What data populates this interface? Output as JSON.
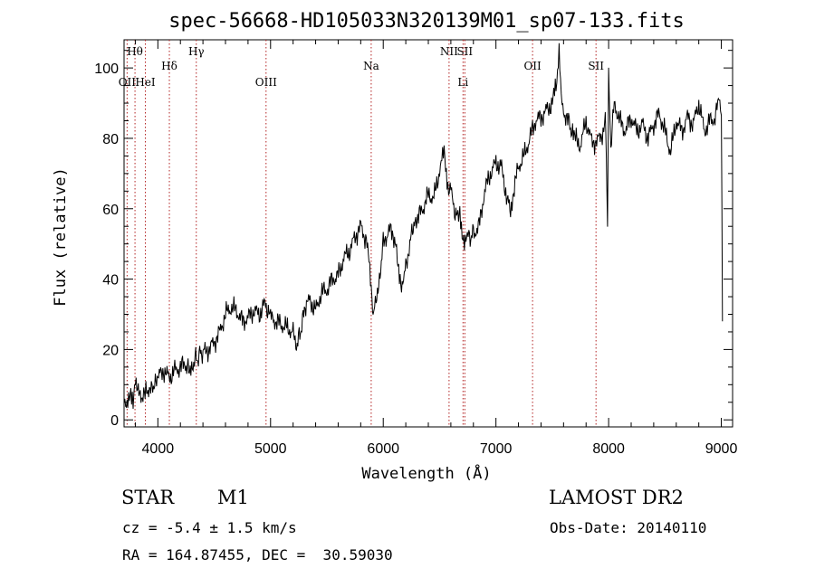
{
  "chart_data": {
    "type": "line",
    "title": "spec-56668-HD105033N320139M01_sp07-133.fits",
    "xlabel": "Wavelength (Å)",
    "ylabel": "Flux (relative)",
    "xlim": [
      3700,
      9100
    ],
    "ylim": [
      -2,
      108
    ],
    "xticks": [
      4000,
      5000,
      6000,
      7000,
      8000,
      9000
    ],
    "yticks": [
      0,
      20,
      40,
      60,
      80,
      100
    ],
    "grid": false,
    "line_color": "#000000",
    "marker_color": "#b22222",
    "series": [
      {
        "x": [
          3700,
          3720,
          3740,
          3760,
          3780,
          3800,
          3820,
          3850,
          3880,
          3900,
          3930,
          3960,
          4000,
          4050,
          4100,
          4150,
          4200,
          4250,
          4280,
          4300,
          4330,
          4360,
          4400,
          4450,
          4500,
          4550,
          4600,
          4650,
          4700,
          4750,
          4800,
          4850,
          4900,
          4950,
          4980,
          5000,
          5050,
          5100,
          5150,
          5200,
          5230,
          5260,
          5300,
          5350,
          5400,
          5450,
          5500,
          5550,
          5600,
          5650,
          5700,
          5750,
          5800,
          5850,
          5880,
          5900,
          5910,
          5930,
          5960,
          6000,
          6050,
          6100,
          6130,
          6150,
          6180,
          6200,
          6230,
          6260,
          6300,
          6350,
          6400,
          6450,
          6500,
          6520,
          6540,
          6560,
          6580,
          6600,
          6620,
          6650,
          6680,
          6700,
          6720,
          6740,
          6760,
          6800,
          6850,
          6900,
          6950,
          7000,
          7050,
          7080,
          7100,
          7130,
          7150,
          7200,
          7250,
          7300,
          7350,
          7400,
          7450,
          7500,
          7520,
          7540,
          7560,
          7580,
          7600,
          7650,
          7680,
          7700,
          7750,
          7800,
          7850,
          7900,
          7950,
          7970,
          7980,
          7990,
          8000,
          8020,
          8050,
          8100,
          8150,
          8200,
          8250,
          8300,
          8350,
          8400,
          8450,
          8500,
          8550,
          8600,
          8650,
          8700,
          8750,
          8800,
          8850,
          8900,
          8950,
          8980,
          9000,
          9010
        ],
        "y": [
          5,
          4,
          7,
          9,
          6,
          12,
          8,
          7,
          6,
          9,
          8,
          10,
          12,
          14,
          12,
          14,
          15,
          16,
          13,
          15,
          17,
          18,
          19,
          20,
          22,
          25,
          30,
          32,
          31,
          28,
          29,
          31,
          30,
          33,
          31,
          29,
          28,
          27,
          26,
          25,
          21,
          24,
          32,
          34,
          31,
          36,
          37,
          40,
          41,
          46,
          48,
          52,
          55,
          51,
          44,
          36,
          28,
          34,
          38,
          50,
          54,
          52,
          44,
          40,
          38,
          44,
          48,
          55,
          57,
          60,
          64,
          63,
          71,
          75,
          76,
          68,
          63,
          66,
          62,
          57,
          60,
          53,
          50,
          51,
          52,
          53,
          55,
          65,
          70,
          73,
          72,
          66,
          62,
          60,
          64,
          72,
          75,
          80,
          85,
          86,
          88,
          90,
          93,
          94,
          104,
          92,
          88,
          84,
          82,
          80,
          78,
          85,
          79,
          79,
          82,
          86,
          75,
          55,
          100,
          78,
          90,
          85,
          82,
          86,
          82,
          84,
          80,
          84,
          87,
          82,
          76,
          85,
          82,
          86,
          84,
          90,
          82,
          85,
          86,
          93,
          88,
          28
        ]
      }
    ],
    "line_markers": [
      {
        "label": "Hθ",
        "x": 3797,
        "row": "top"
      },
      {
        "label": "OII",
        "x": 3727,
        "row": "second"
      },
      {
        "label": "HeI",
        "x": 3889,
        "row": "second"
      },
      {
        "label": "Hδ",
        "x": 4102,
        "row": "mid"
      },
      {
        "label": "Hγ",
        "x": 4341,
        "row": "top"
      },
      {
        "label": "OIII",
        "x": 4960,
        "row": "second"
      },
      {
        "label": "Na",
        "x": 5893,
        "row": "mid"
      },
      {
        "label": "NII",
        "x": 6584,
        "row": "top"
      },
      {
        "label": "SII",
        "x": 6724,
        "row": "top"
      },
      {
        "label": "Li",
        "x": 6708,
        "row": "second"
      },
      {
        "label": "OII",
        "x": 7325,
        "row": "mid"
      },
      {
        "label": "SII",
        "x": 7888,
        "row": "mid"
      }
    ]
  },
  "info": {
    "object_type": "STAR",
    "subclass": "M1",
    "survey": "LAMOST DR2",
    "redshift": "cz = -5.4 ± 1.5 km/s",
    "obs_date": "Obs-Date: 20140110",
    "coords": "RA = 164.87455, DEC =  30.59030"
  }
}
